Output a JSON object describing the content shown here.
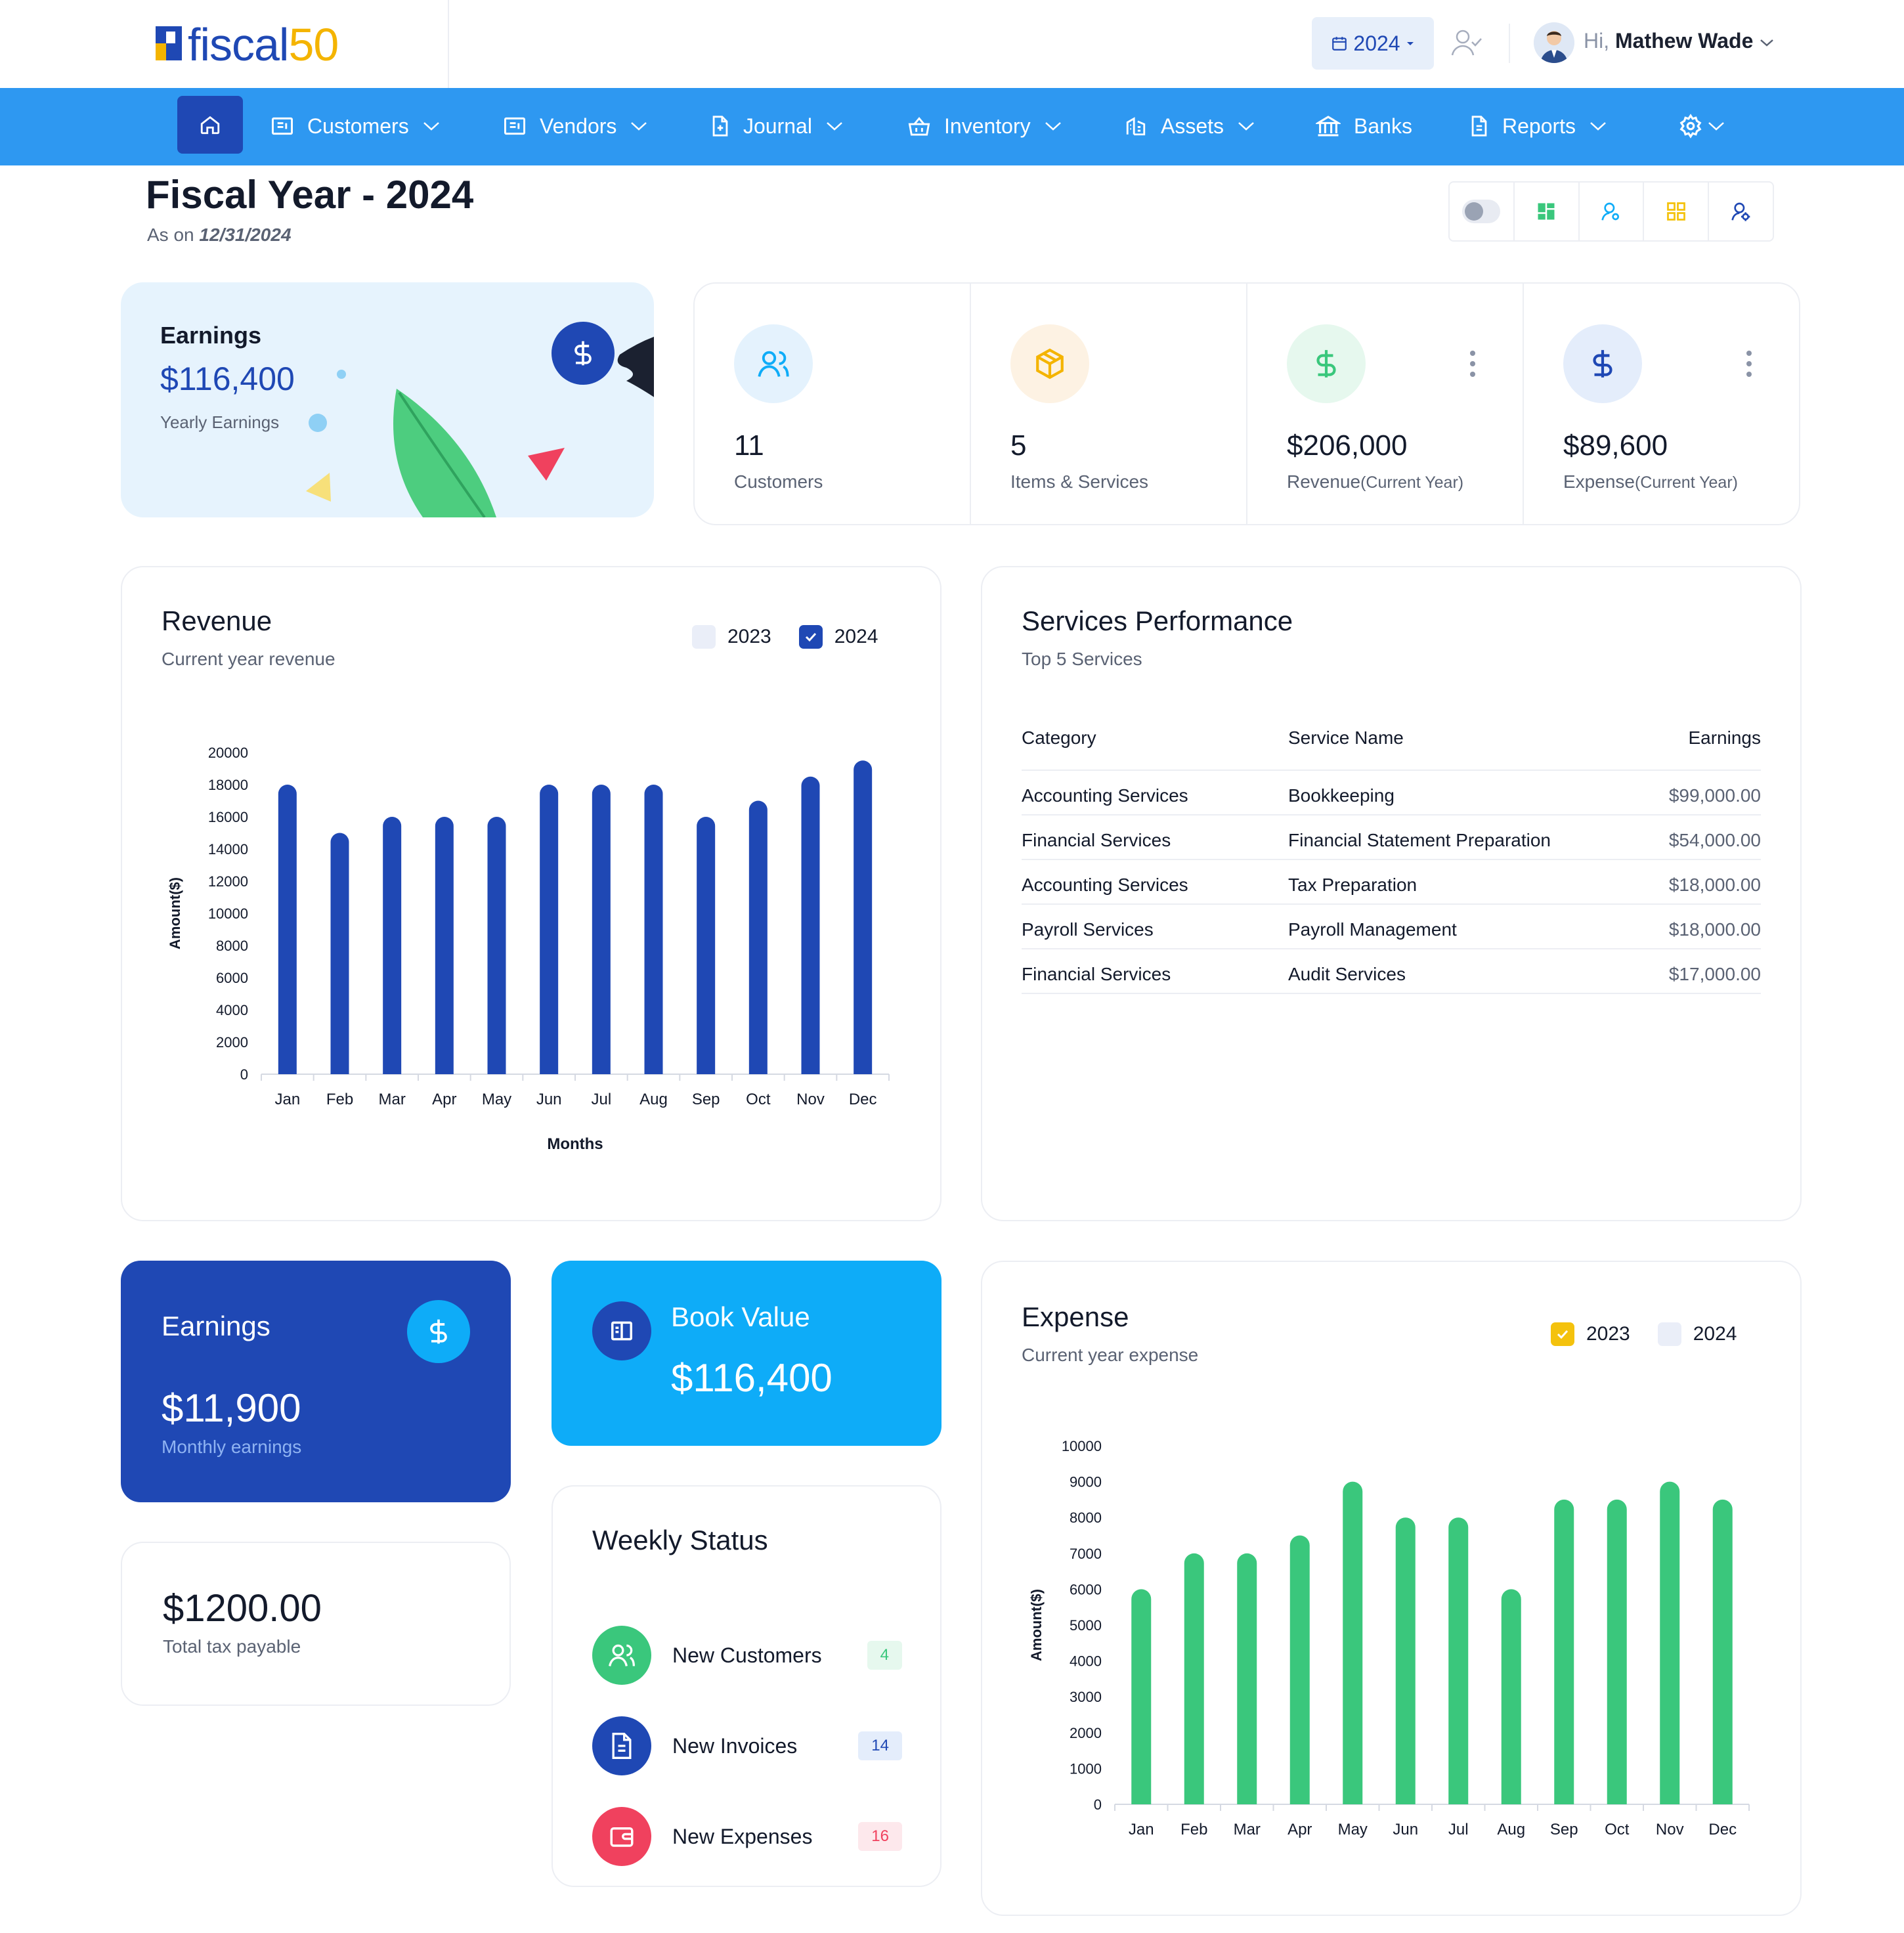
{
  "header": {
    "logo_text": "fiscal",
    "logo_num": "50",
    "year": "2024",
    "greeting": "Hi,",
    "user_name": "Mathew Wade"
  },
  "nav": {
    "items": [
      {
        "label": "Customers",
        "icon": "customers-icon"
      },
      {
        "label": "Vendors",
        "icon": "vendors-icon"
      },
      {
        "label": "Journal",
        "icon": "journal-icon"
      },
      {
        "label": "Inventory",
        "icon": "inventory-icon"
      },
      {
        "label": "Assets",
        "icon": "assets-icon"
      },
      {
        "label": "Banks",
        "icon": "banks-icon"
      },
      {
        "label": "Reports",
        "icon": "reports-icon"
      }
    ]
  },
  "page": {
    "title": "Fiscal Year - 2024",
    "as_on_label": "As on",
    "as_on_date": "12/31/2024"
  },
  "earnings_card": {
    "title": "Earnings",
    "value": "$116,400",
    "subtitle": "Yearly Earnings"
  },
  "stats": [
    {
      "value": "11",
      "label": "Customers",
      "label_small": ""
    },
    {
      "value": "5",
      "label": "Items & Services",
      "label_small": ""
    },
    {
      "value": "$206,000",
      "label": "Revenue",
      "label_small": "(Current Year)"
    },
    {
      "value": "$89,600",
      "label": "Expense",
      "label_small": "(Current Year)"
    }
  ],
  "revenue": {
    "title": "Revenue",
    "subtitle": "Current year revenue",
    "legend": [
      "2023",
      "2024"
    ]
  },
  "services": {
    "title": "Services Performance",
    "subtitle": "Top 5 Services",
    "columns": [
      "Category",
      "Service Name",
      "Earnings"
    ],
    "rows": [
      [
        "Accounting Services",
        "Bookkeeping",
        "$99,000.00"
      ],
      [
        "Financial Services",
        "Financial Statement Preparation",
        "$54,000.00"
      ],
      [
        "Accounting Services",
        "Tax Preparation",
        "$18,000.00"
      ],
      [
        "Payroll Services",
        "Payroll Management",
        "$18,000.00"
      ],
      [
        "Financial Services",
        "Audit Services",
        "$17,000.00"
      ]
    ]
  },
  "monthly_earnings": {
    "title": "Earnings",
    "value": "$11,900",
    "subtitle": "Monthly earnings"
  },
  "book_value": {
    "title": "Book Value",
    "value": "$116,400"
  },
  "tax": {
    "value": "$1200.00",
    "subtitle": "Total tax payable"
  },
  "weekly": {
    "title": "Weekly Status",
    "rows": [
      {
        "label": "New Customers",
        "count": "4"
      },
      {
        "label": "New Invoices",
        "count": "14"
      },
      {
        "label": "New Expenses",
        "count": "16"
      }
    ]
  },
  "expense": {
    "title": "Expense",
    "subtitle": "Current year expense",
    "legend": [
      "2023",
      "2024"
    ]
  },
  "chart_data": [
    {
      "type": "bar",
      "title": "Revenue",
      "xlabel": "Months",
      "ylabel": "Amount($)",
      "categories": [
        "Jan",
        "Feb",
        "Mar",
        "Apr",
        "May",
        "Jun",
        "Jul",
        "Aug",
        "Sep",
        "Oct",
        "Nov",
        "Dec"
      ],
      "series": [
        {
          "name": "2024",
          "values": [
            18000,
            15000,
            16000,
            16000,
            16000,
            18000,
            18000,
            18000,
            16000,
            17000,
            18500,
            19500
          ],
          "color": "#1f48b4"
        }
      ],
      "ylim": [
        0,
        20000
      ],
      "yticks": [
        0,
        2000,
        4000,
        6000,
        8000,
        10000,
        12000,
        14000,
        16000,
        18000,
        20000
      ]
    },
    {
      "type": "bar",
      "title": "Expense",
      "xlabel": "",
      "ylabel": "Amount($)",
      "categories": [
        "Jan",
        "Feb",
        "Mar",
        "Apr",
        "May",
        "Jun",
        "Jul",
        "Aug",
        "Sep",
        "Oct",
        "Nov",
        "Dec"
      ],
      "series": [
        {
          "name": "2023",
          "values": [
            6000,
            7000,
            7000,
            7500,
            9000,
            8000,
            8000,
            6000,
            8500,
            8500,
            9000,
            8500
          ],
          "color": "#3ac77c"
        }
      ],
      "ylim": [
        0,
        10000
      ],
      "yticks": [
        0,
        1000,
        2000,
        3000,
        4000,
        5000,
        6000,
        7000,
        8000,
        9000,
        10000
      ]
    }
  ]
}
